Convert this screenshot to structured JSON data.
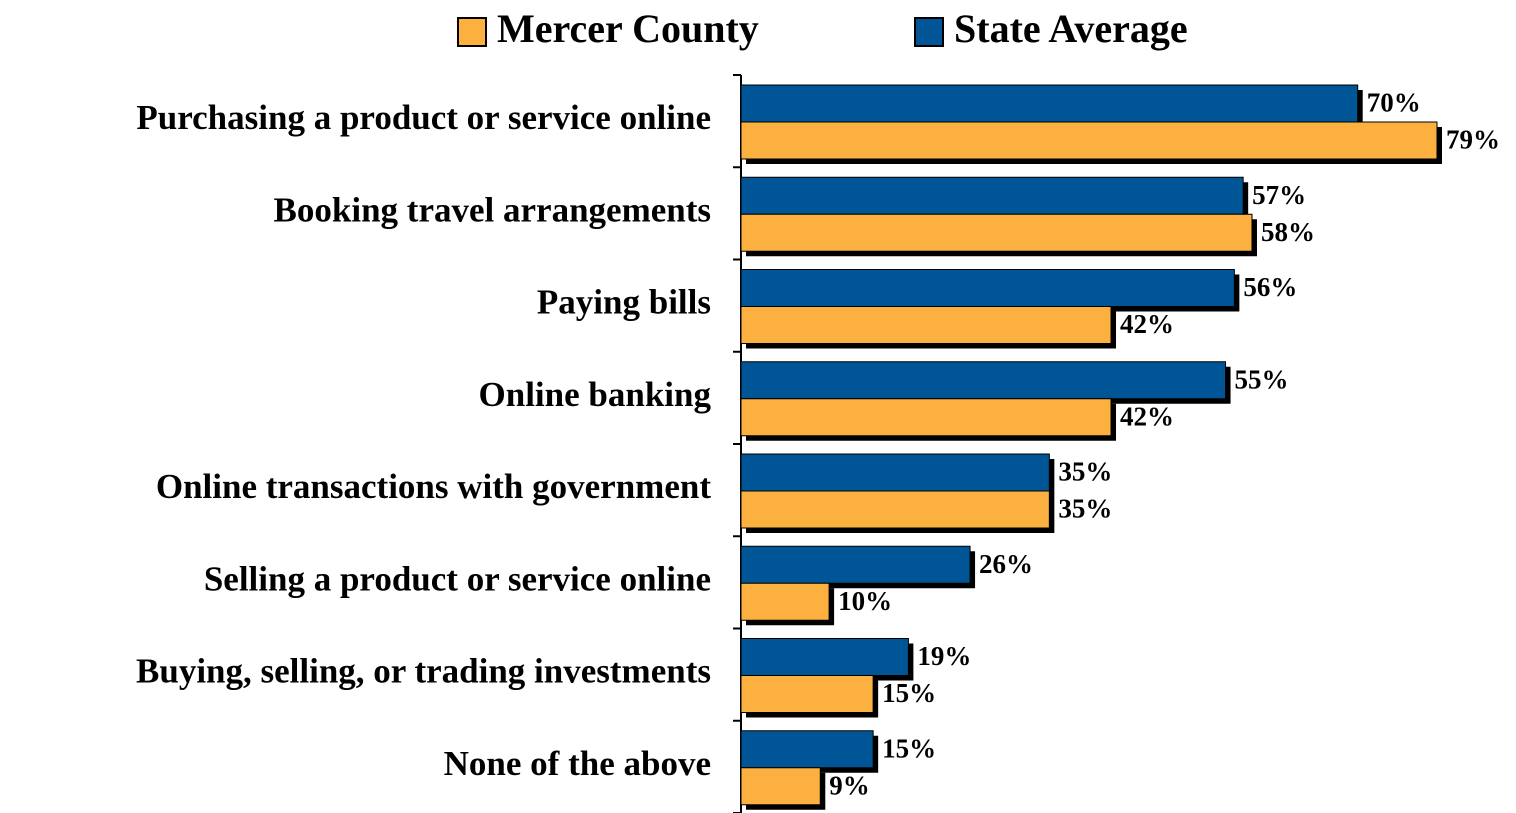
{
  "chart_data": {
    "type": "hbar",
    "categories": [
      "Purchasing a product or service online",
      "Booking travel arrangements",
      "Paying bills",
      "Online banking",
      "Online transactions with government",
      "Selling a product or service online",
      "Buying, selling, or trading investments",
      "None of the above"
    ],
    "series": [
      {
        "name": "Mercer County",
        "color": "#fbb040",
        "values": [
          79,
          58,
          42,
          42,
          35,
          10,
          15,
          9
        ],
        "value_labels": [
          "79%",
          "58%",
          "42%",
          "42%",
          "35%",
          "10%",
          "15%",
          "9%"
        ]
      },
      {
        "name": "State Average",
        "color": "#005596",
        "values": [
          70,
          57,
          56,
          55,
          35,
          26,
          19,
          15
        ],
        "value_labels": [
          "70%",
          "57%",
          "56%",
          "55%",
          "35%",
          "26%",
          "19%",
          "15%"
        ]
      }
    ],
    "legend": "top"
  }
}
